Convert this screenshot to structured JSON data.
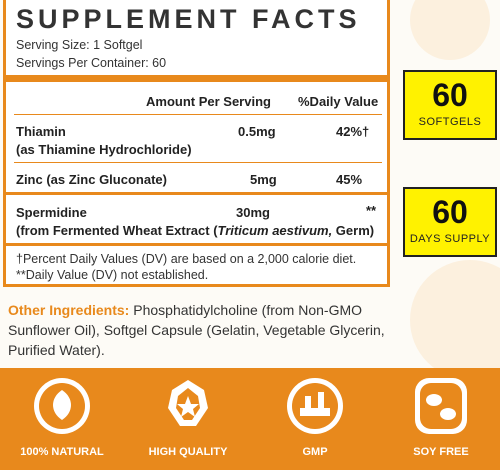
{
  "header": {
    "title": "SUPPLEMENT FACTS",
    "serving_size": "Serving Size: 1 Softgel",
    "servings_per_container": "Servings Per Container: 60"
  },
  "table": {
    "columns": [
      "Amount Per Serving",
      "%Daily Value"
    ],
    "rows": [
      {
        "name": "Thiamin",
        "source": [
          "(as Thiamine Hydrochloride)"
        ],
        "amount": "0.5mg",
        "dv": "42%†"
      },
      {
        "name": "Zinc (as Zinc Gluconate)",
        "amount": "5mg",
        "dv": "45%"
      },
      {
        "name": "Spermidine",
        "source": [
          "(from Fermented Wheat Extract (",
          "Triticum aestivum,",
          " Germ)"
        ],
        "amount": "30mg",
        "dv": "**"
      }
    ]
  },
  "footnotes": [
    "†Percent Daily Values (DV) are based on a 2,000 calorie diet.",
    "**Daily Value (DV) not established."
  ],
  "other_ingredients": {
    "label": "Other Ingredients:",
    "text": "Phosphatidylcholine (from Non-GMO Sunflower Oil), Softgel Capsule (Gelatin, Vegetable Glycerin, Purified Water)."
  },
  "badges": [
    {
      "number": "60",
      "label": "SOFTGELS"
    },
    {
      "number": "60",
      "label": "DAYS SUPPLY"
    }
  ],
  "features": [
    "100% NATURAL",
    "HIGH QUALITY",
    "GMP",
    "SOY FREE"
  ]
}
